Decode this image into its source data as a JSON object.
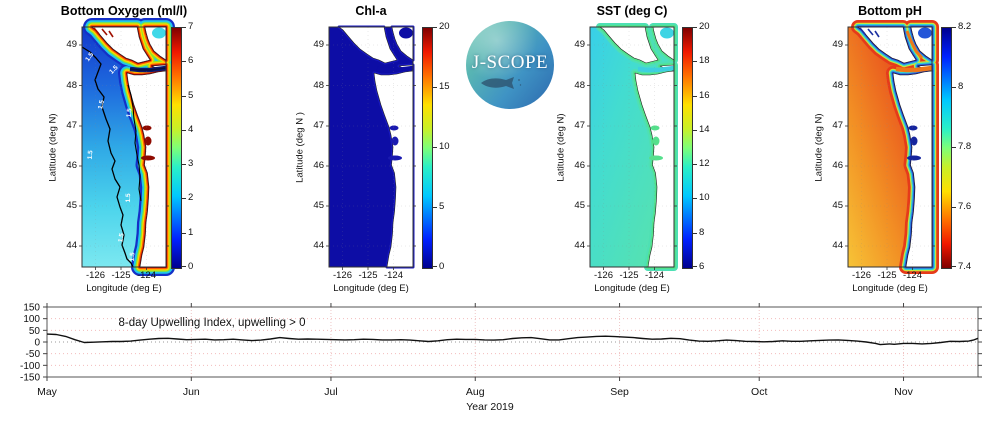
{
  "panels": [
    {
      "id": "bottom-oxygen",
      "title": "Bottom Oxygen (ml/l)",
      "ylabel": "Latitude (deg N)",
      "xlabel": "Longitude (deg E)",
      "lat_ticks": [
        "49",
        "48",
        "47",
        "46",
        "45",
        "44"
      ],
      "lon_ticks": [
        "-126",
        "-125",
        "-124"
      ],
      "contour_label": "1.5",
      "colorbar": {
        "min": 0,
        "max": 7,
        "ticks": [
          "7",
          "6",
          "5",
          "4",
          "3",
          "2",
          "1",
          "0"
        ],
        "colormap": "jet"
      },
      "colors": {
        "base_dir": "v",
        "base": [
          "#1238cc",
          "#1e6ade",
          "#2fa8e6",
          "#4cd4ec",
          "#7ce8f0"
        ],
        "bands": [
          {
            "c": "#1430c8",
            "w": 18
          },
          {
            "c": "#22c8e8",
            "w": 13.5
          },
          {
            "c": "#8ce82a",
            "w": 9.5
          },
          {
            "c": "#ffd400",
            "w": 7
          },
          {
            "c": "#ff5a00",
            "w": 4.4
          },
          {
            "c": "#a00000",
            "w": 2
          }
        ],
        "strait": "#081a72",
        "strait_core": "#05103c",
        "corner": "#40d8e8",
        "estuary": "#8f0a00",
        "fjord": "#a01000",
        "contour": "#000000"
      }
    },
    {
      "id": "chl-a",
      "title": "Chl-a",
      "ylabel": "Latitude (deg N )",
      "xlabel": "Longitude (deg E)",
      "lat_ticks": [
        "49",
        "48",
        "47",
        "46",
        "45",
        "44"
      ],
      "lon_ticks": [
        "-126",
        "-125",
        "-124"
      ],
      "colorbar": {
        "min": 0,
        "max": 20,
        "ticks": [
          "20",
          "15",
          "10",
          "5",
          "0"
        ],
        "colormap": "jet"
      },
      "colors": {
        "base_dir": "v",
        "base": [
          "#0d0da5",
          "#0d0da5"
        ],
        "bands": [
          {
            "c": "#1919c0",
            "w": 3
          }
        ],
        "strait": "#0d0da5",
        "corner": "#0d0da5",
        "estuary": "#1a1ab0"
      }
    },
    {
      "id": "sst",
      "title": "SST (deg C)",
      "ylabel": "Latitude (deg N)",
      "xlabel": "Longitude (deg E)",
      "lat_ticks": [
        "49",
        "48",
        "47",
        "46",
        "45",
        "44"
      ],
      "lon_ticks": [
        "-126",
        "-125",
        "-124"
      ],
      "colorbar": {
        "min": 6,
        "max": 20,
        "ticks": [
          "20",
          "18",
          "16",
          "14",
          "12",
          "10",
          "8",
          "6"
        ],
        "colormap": "jet"
      },
      "colors": {
        "base_dir": "d",
        "base": [
          "#38cfe8",
          "#43dcd0",
          "#4fe0bc",
          "#5ce4a8"
        ],
        "bands": [
          {
            "c": "#4ee0b4",
            "w": 8
          },
          {
            "c": "#52e28c",
            "w": 4
          }
        ],
        "strait": "#3ecfe0",
        "corner": "#3ed4e4",
        "estuary": "#55e08c"
      }
    },
    {
      "id": "bottom-ph",
      "title": "Bottom pH",
      "ylabel": "Latitude (deg N)",
      "xlabel": "Longitude (deg E)",
      "lat_ticks": [
        "49",
        "48",
        "47",
        "46",
        "45",
        "44"
      ],
      "lon_ticks": [
        "-126",
        "-125",
        "-124"
      ],
      "colorbar": {
        "min": 7.4,
        "max": 8.2,
        "ticks": [
          "8.2",
          "8",
          "7.8",
          "7.6",
          "7.4"
        ],
        "colormap": "jet-reversed"
      },
      "colors": {
        "base_dir": "bl-tr",
        "base": [
          "#f7c437",
          "#f29024",
          "#ea5a1e",
          "#e23a1a"
        ],
        "bands": [
          {
            "c": "#e63a1a",
            "w": 14
          },
          {
            "c": "#c8e43c",
            "w": 8.5
          },
          {
            "c": "#2fd4d4",
            "w": 6
          },
          {
            "c": "#2e6fe0",
            "w": 3.6
          },
          {
            "c": "#131f9c",
            "w": 1.6
          }
        ],
        "strait": "#ee7718",
        "georgia": "#ee7718",
        "corner": "#2456d8",
        "estuary": "#15249e",
        "fjord": "#1a2fa0"
      }
    }
  ],
  "logo": {
    "text": "J-SCOPE"
  },
  "chart_data": {
    "type": "line",
    "title": "8-day Upwelling Index, upwelling > 0",
    "xlabel": "Year 2019",
    "x_tick_labels": [
      "May",
      "Jun",
      "Jul",
      "Aug",
      "Sep",
      "Oct",
      "Nov"
    ],
    "x_tick_days": [
      0,
      31,
      61,
      92,
      123,
      153,
      184
    ],
    "x_range_days": [
      0,
      200
    ],
    "ylim": [
      -150,
      150
    ],
    "y_ticks": [
      150,
      100,
      50,
      0,
      -50,
      -100,
      -150
    ],
    "zero_line": true,
    "grid": true,
    "series": [
      {
        "name": "upwelling_index",
        "points": [
          [
            0,
            34
          ],
          [
            2,
            32
          ],
          [
            4,
            24
          ],
          [
            6,
            10
          ],
          [
            8,
            -2
          ],
          [
            10,
            -1
          ],
          [
            12,
            1
          ],
          [
            14,
            2
          ],
          [
            16,
            2
          ],
          [
            18,
            4
          ],
          [
            20,
            8
          ],
          [
            22,
            12
          ],
          [
            24,
            15
          ],
          [
            26,
            16
          ],
          [
            28,
            13
          ],
          [
            30,
            10
          ],
          [
            32,
            11
          ],
          [
            34,
            12
          ],
          [
            36,
            9
          ],
          [
            38,
            10
          ],
          [
            40,
            12
          ],
          [
            42,
            9
          ],
          [
            44,
            6
          ],
          [
            46,
            8
          ],
          [
            48,
            13
          ],
          [
            50,
            19
          ],
          [
            52,
            15
          ],
          [
            54,
            12
          ],
          [
            56,
            13
          ],
          [
            58,
            12
          ],
          [
            60,
            11
          ],
          [
            62,
            10
          ],
          [
            64,
            9
          ],
          [
            66,
            10
          ],
          [
            68,
            12
          ],
          [
            70,
            11
          ],
          [
            72,
            9
          ],
          [
            74,
            9
          ],
          [
            76,
            10
          ],
          [
            78,
            8
          ],
          [
            80,
            5
          ],
          [
            82,
            2
          ],
          [
            84,
            5
          ],
          [
            86,
            10
          ],
          [
            88,
            12
          ],
          [
            90,
            11
          ],
          [
            92,
            11
          ],
          [
            94,
            9
          ],
          [
            96,
            8
          ],
          [
            98,
            10
          ],
          [
            100,
            15
          ],
          [
            102,
            18
          ],
          [
            104,
            19
          ],
          [
            106,
            14
          ],
          [
            108,
            9
          ],
          [
            110,
            9
          ],
          [
            112,
            14
          ],
          [
            114,
            19
          ],
          [
            116,
            21
          ],
          [
            118,
            24
          ],
          [
            120,
            25
          ],
          [
            122,
            23
          ],
          [
            124,
            21
          ],
          [
            126,
            19
          ],
          [
            128,
            15
          ],
          [
            130,
            12
          ],
          [
            132,
            13
          ],
          [
            134,
            16
          ],
          [
            136,
            14
          ],
          [
            138,
            8
          ],
          [
            140,
            4
          ],
          [
            142,
            3
          ],
          [
            144,
            5
          ],
          [
            146,
            8
          ],
          [
            148,
            6
          ],
          [
            150,
            3
          ],
          [
            152,
            2
          ],
          [
            154,
            1
          ],
          [
            156,
            2
          ],
          [
            158,
            5
          ],
          [
            160,
            3
          ],
          [
            162,
            3
          ],
          [
            164,
            5
          ],
          [
            166,
            7
          ],
          [
            168,
            8
          ],
          [
            170,
            9
          ],
          [
            172,
            7
          ],
          [
            174,
            4
          ],
          [
            176,
            0
          ],
          [
            178,
            -6
          ],
          [
            179,
            -11
          ],
          [
            181,
            -8
          ],
          [
            182,
            -10
          ],
          [
            184,
            -6
          ],
          [
            186,
            -6
          ],
          [
            188,
            -8
          ],
          [
            190,
            -6
          ],
          [
            192,
            -2
          ],
          [
            194,
            3
          ],
          [
            196,
            2
          ],
          [
            198,
            4
          ],
          [
            199,
            8
          ],
          [
            200,
            16
          ]
        ]
      }
    ]
  }
}
